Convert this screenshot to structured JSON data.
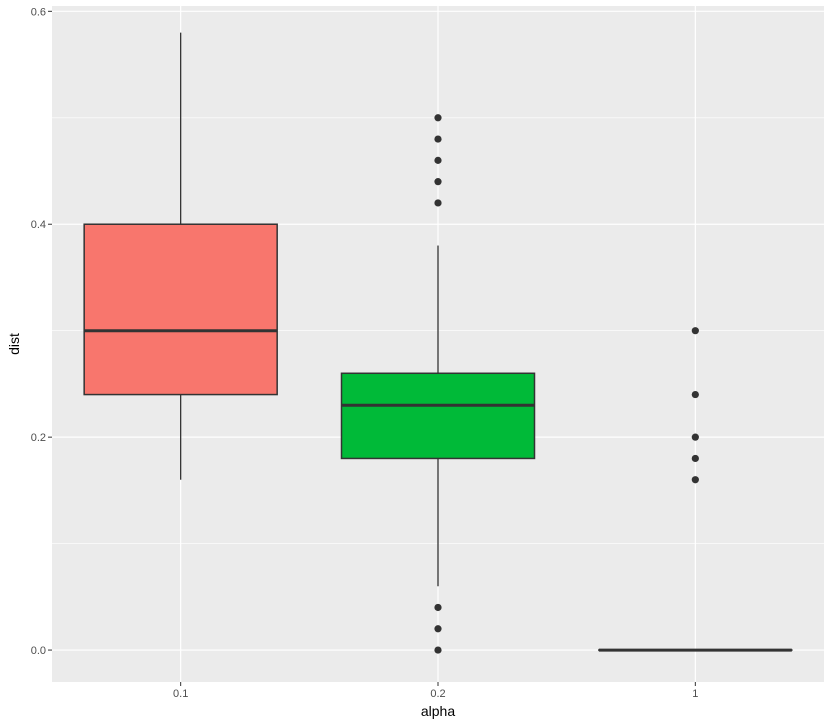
{
  "chart_data": {
    "type": "box",
    "xlabel": "alpha",
    "ylabel": "dist",
    "ylim": [
      -0.03,
      0.605
    ],
    "y_ticks": [
      "0.0",
      "0.2",
      "0.4",
      "0.6"
    ],
    "y_tick_values": [
      0.0,
      0.2,
      0.4,
      0.6
    ],
    "grid": true,
    "legend": "none",
    "categories": [
      "0.1",
      "0.2",
      "1"
    ],
    "boxes": [
      {
        "category": "0.1",
        "fill": "#F8766D",
        "whisker_low": 0.16,
        "q1": 0.24,
        "median": 0.3,
        "q3": 0.4,
        "whisker_high": 0.58,
        "outliers": []
      },
      {
        "category": "0.2",
        "fill": "#00BA38",
        "whisker_low": 0.06,
        "q1": 0.18,
        "median": 0.23,
        "q3": 0.26,
        "whisker_high": 0.38,
        "outliers": [
          0.5,
          0.48,
          0.46,
          0.44,
          0.42,
          0.04,
          0.02,
          0.0
        ]
      },
      {
        "category": "1",
        "fill": "#619CFF",
        "whisker_low": 0.0,
        "q1": 0.0,
        "median": 0.0,
        "q3": 0.0,
        "whisker_high": 0.0,
        "outliers": [
          0.3,
          0.24,
          0.2,
          0.18,
          0.16
        ]
      }
    ]
  },
  "colors": {
    "panel_background": "#EBEBEB",
    "grid_line": "#FFFFFF",
    "box_outline": "#333333",
    "outlier": "#333333"
  }
}
